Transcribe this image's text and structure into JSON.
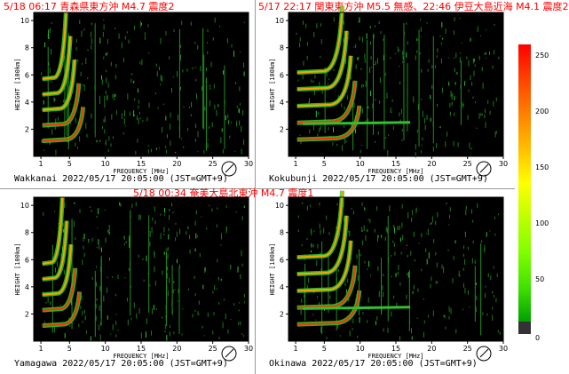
{
  "quake_texts": {
    "top_left": "5/18 06:17 青森県東方沖 M4.7 震度2",
    "top_right": "5/17 22:17 関東東方沖 M5.5 無感、22:46 伊豆大島近海 M4.1 震度2",
    "middle": "5/18 00:34 奄美大島北東沖 M4.7 震度1"
  },
  "panels": [
    {
      "station": "Wakkanai",
      "timestamp": "2022/05/17 20:05:00 (JST=GMT+9)"
    },
    {
      "station": "Kokubunji",
      "timestamp": "2022/05/17 20:05:00 (JST=GMT+9)"
    },
    {
      "station": "Yamagawa",
      "timestamp": "2022/05/17 20:05:00 (JST=GMT+9)"
    },
    {
      "station": "Okinawa",
      "timestamp": "2022/05/17 20:05:00 (JST=GMT+9)"
    }
  ],
  "axes": {
    "xlabel": "FREQUENCY [MHz]",
    "ylabel": "HEIGHT [100km]",
    "xticks": [
      "1",
      "5",
      "10",
      "15",
      "20",
      "25",
      "30"
    ],
    "yticks": [
      "2",
      "4",
      "6",
      "8",
      "10"
    ]
  },
  "colorbar": {
    "labels": [
      "250",
      "200",
      "150",
      "100",
      "50",
      "0"
    ],
    "colors": {
      "high": "#ff0000",
      "mid": "#ffff00",
      "low": "#00a000",
      "none": "#333333"
    }
  }
}
